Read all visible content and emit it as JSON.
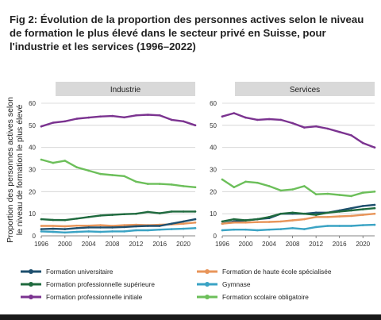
{
  "title": "Fig 2: Évolution de la proportion des personnes actives selon le niveau de formation le plus élevé dans le secteur privé en Suisse, pour l'industrie et les services (1996–2022)",
  "colors": {
    "Formation universitaire": "#1e4f6e",
    "Formation de haute école spécialisée": "#e8955a",
    "Formation professionnelle supérieure": "#1f6a3e",
    "Gymnase": "#3aa3c4",
    "Formation professionnelle initiale": "#7b3390",
    "Formation scolaire obligatoire": "#6cbf5a"
  },
  "chart_data": [
    {
      "type": "line",
      "panel": "Industrie",
      "ylabel": "Proportion des personnes actives selon le niveau de formation le plus élevé",
      "ylim": [
        0,
        60
      ],
      "yticks": [
        0,
        10,
        20,
        30,
        40,
        50,
        60
      ],
      "xticks": [
        1996,
        2000,
        2004,
        2008,
        2012,
        2016,
        2020
      ],
      "xlim": [
        1996,
        2022
      ],
      "x": [
        1996,
        1998,
        2000,
        2002,
        2004,
        2006,
        2008,
        2010,
        2012,
        2014,
        2016,
        2018,
        2020,
        2022
      ],
      "series": [
        {
          "name": "Formation professionnelle initiale",
          "values": [
            49.5,
            51.2,
            51.8,
            53,
            53.5,
            54,
            54.2,
            53.6,
            54.5,
            54.8,
            54.5,
            52.5,
            51.8,
            50
          ]
        },
        {
          "name": "Formation scolaire obligatoire",
          "values": [
            34.5,
            33,
            34,
            31,
            29.5,
            28,
            27.5,
            27,
            24.5,
            23.5,
            23.5,
            23.2,
            22.5,
            22
          ]
        },
        {
          "name": "Formation professionnelle supérieure",
          "values": [
            7.5,
            7.2,
            7.1,
            7.8,
            8.5,
            9.2,
            9.5,
            9.8,
            10,
            10.8,
            10.2,
            11,
            11,
            11
          ]
        },
        {
          "name": "Formation de haute école spécialisée",
          "values": [
            4.5,
            4.5,
            4.3,
            4.6,
            4.6,
            4.8,
            4.5,
            4.8,
            5,
            4.8,
            5,
            5.2,
            5.5,
            6
          ]
        },
        {
          "name": "Formation universitaire",
          "values": [
            3,
            3.2,
            3,
            3.5,
            3.8,
            3.8,
            3.8,
            4,
            4.3,
            4.5,
            4.5,
            5.5,
            6.5,
            7.5
          ]
        },
        {
          "name": "Gymnase",
          "values": [
            2,
            1.8,
            1.5,
            1.8,
            2,
            1.8,
            2,
            2,
            2.5,
            2.5,
            2.8,
            3,
            3.2,
            3.5
          ]
        }
      ]
    },
    {
      "type": "line",
      "panel": "Services",
      "ylim": [
        0,
        60
      ],
      "yticks": [
        0,
        10,
        20,
        30,
        40,
        50,
        60
      ],
      "xticks": [
        1996,
        2000,
        2004,
        2008,
        2012,
        2016,
        2020
      ],
      "xlim": [
        1996,
        2022
      ],
      "x": [
        1996,
        1998,
        2000,
        2002,
        2004,
        2006,
        2008,
        2010,
        2012,
        2014,
        2016,
        2018,
        2020,
        2022
      ],
      "series": [
        {
          "name": "Formation professionnelle initiale",
          "values": [
            54,
            55.5,
            53.5,
            52.5,
            52.8,
            52.5,
            51,
            49,
            49.5,
            48.5,
            47,
            45.5,
            42,
            40
          ]
        },
        {
          "name": "Formation scolaire obligatoire",
          "values": [
            25.5,
            22,
            24.5,
            24,
            22.5,
            20.5,
            21,
            22.5,
            18.8,
            19,
            18.5,
            18,
            19.5,
            20
          ]
        },
        {
          "name": "Formation universitaire",
          "values": [
            5.5,
            6.5,
            7,
            7.5,
            8,
            10,
            10,
            10,
            10.5,
            10.5,
            11.5,
            12.5,
            13.5,
            14
          ]
        },
        {
          "name": "Formation professionnelle supérieure",
          "values": [
            6.5,
            7.5,
            7,
            7.5,
            8.5,
            10,
            10.5,
            10,
            9.5,
            10.5,
            11,
            11.5,
            12,
            12.5
          ]
        },
        {
          "name": "Formation de haute école spécialisée",
          "values": [
            5.5,
            6,
            6,
            6.2,
            6.3,
            6.5,
            7,
            7.5,
            8.5,
            8.5,
            8.8,
            9,
            9.5,
            10
          ]
        },
        {
          "name": "Gymnase",
          "values": [
            2.5,
            2.8,
            2.8,
            2.5,
            2.8,
            3,
            3.5,
            3,
            4,
            4.5,
            4.5,
            4.5,
            4.8,
            5
          ]
        }
      ]
    }
  ],
  "legend": [
    "Formation universitaire",
    "Formation de haute école spécialisée",
    "Formation professionnelle supérieure",
    "Gymnase",
    "Formation professionnelle initiale",
    "Formation scolaire obligatoire"
  ]
}
